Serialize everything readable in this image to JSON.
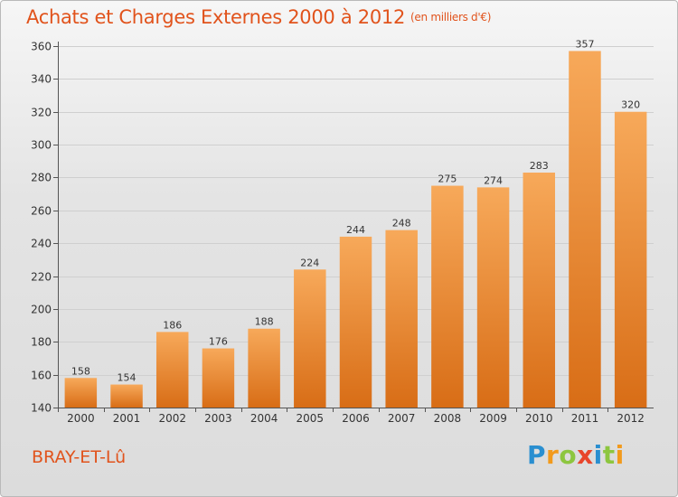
{
  "header": {
    "title": "Achats et Charges Externes 2000 à 2012",
    "unit": "(en milliers d'€)"
  },
  "footer": {
    "place": "BRAY-ET-Lû"
  },
  "logo": {
    "text": "Proxiti",
    "letters": [
      {
        "ch": "P",
        "color": "#2a8fd0"
      },
      {
        "ch": "r",
        "color": "#f29a1c"
      },
      {
        "ch": "o",
        "color": "#8dc63f"
      },
      {
        "ch": "x",
        "color": "#e8452b"
      },
      {
        "ch": "i",
        "color": "#2a8fd0"
      },
      {
        "ch": "t",
        "color": "#8dc63f"
      },
      {
        "ch": "i",
        "color": "#f29a1c"
      }
    ]
  },
  "chart_data": {
    "type": "bar",
    "title": "Achats et Charges Externes 2000 à 2012",
    "ylabel": "en milliers d'€",
    "xlabel": "",
    "categories": [
      "2000",
      "2001",
      "2002",
      "2003",
      "2004",
      "2005",
      "2006",
      "2007",
      "2008",
      "2009",
      "2010",
      "2011",
      "2012"
    ],
    "values": [
      158,
      154,
      186,
      176,
      188,
      224,
      244,
      248,
      275,
      274,
      283,
      357,
      320
    ],
    "ylim": [
      140,
      360
    ],
    "yticks": [
      140,
      160,
      180,
      200,
      220,
      240,
      260,
      280,
      300,
      320,
      340,
      360
    ],
    "grid": true,
    "colors": {
      "bar_top": "#f7a95a",
      "bar_bottom": "#d86d16",
      "grid": "#cfcfcf",
      "text": "#333333"
    }
  }
}
